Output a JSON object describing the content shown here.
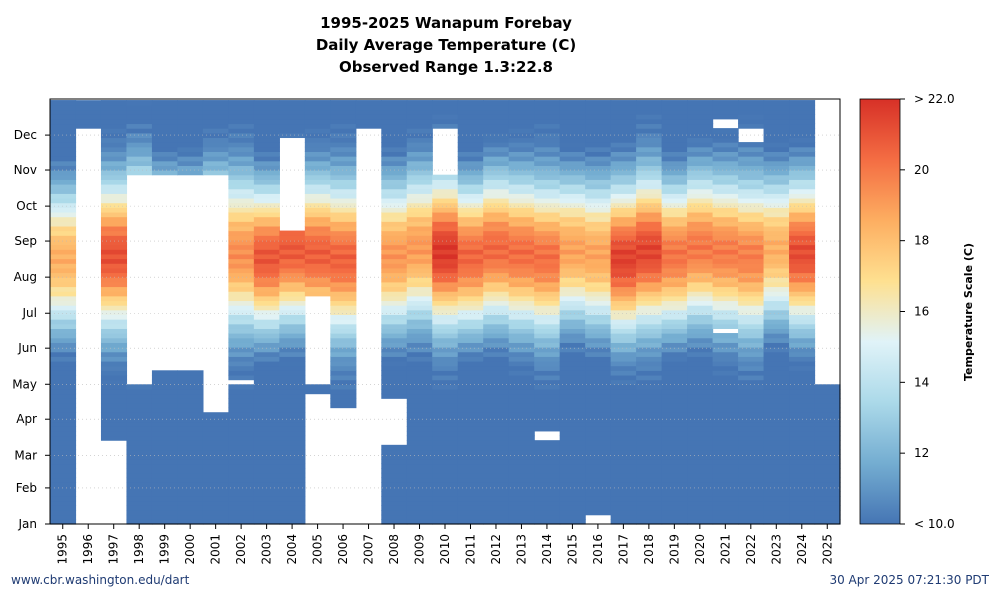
{
  "title": {
    "line1": "1995-2025 Wanapum Forebay",
    "line2": "Daily Average Temperature (C)",
    "line3": "Observed Range 1.3:22.8"
  },
  "footer": {
    "left": "www.cbr.washington.edu/dart",
    "right": "30 Apr 2025 07:21:30 PDT"
  },
  "chart_data": {
    "type": "heatmap",
    "x_label": "",
    "y_label": "",
    "years": [
      "1995",
      "1996",
      "1997",
      "1998",
      "1999",
      "2000",
      "2001",
      "2002",
      "2003",
      "2004",
      "2005",
      "2006",
      "2007",
      "2008",
      "2009",
      "2010",
      "2011",
      "2012",
      "2013",
      "2014",
      "2015",
      "2016",
      "2017",
      "2018",
      "2019",
      "2020",
      "2021",
      "2022",
      "2023",
      "2024",
      "2025"
    ],
    "month_ticks": [
      "Jan",
      "Feb",
      "Mar",
      "Apr",
      "May",
      "Jun",
      "Jul",
      "Aug",
      "Sep",
      "Oct",
      "Nov",
      "Dec"
    ],
    "y_range_days": [
      1,
      365
    ],
    "grid": "dotted horizontal at month starts",
    "colorbar": {
      "label": "Temperature Scale (C)",
      "min": 10.0,
      "max": 22.0,
      "ticks": [
        "< 10.0",
        "12",
        "14",
        "16",
        "18",
        "20",
        "> 22.0"
      ],
      "colors": [
        "#4575b4",
        "#74add1",
        "#abd9e9",
        "#e0f3f8",
        "#fee090",
        "#fdae61",
        "#f46d43",
        "#d73027"
      ]
    },
    "observed_range": [
      1.3,
      22.8
    ],
    "data_coverage_days": [
      [
        1,
        365
      ],
      [
        1,
        365
      ],
      [
        1,
        365
      ],
      [
        1,
        365
      ],
      [
        1,
        365
      ],
      [
        1,
        365
      ],
      [
        1,
        365
      ],
      [
        1,
        365
      ],
      [
        1,
        365
      ],
      [
        1,
        365
      ],
      [
        1,
        365
      ],
      [
        1,
        365
      ],
      [
        1,
        365
      ],
      [
        1,
        365
      ],
      [
        1,
        365
      ],
      [
        1,
        365
      ],
      [
        1,
        365
      ],
      [
        1,
        365
      ],
      [
        1,
        365
      ],
      [
        1,
        365
      ],
      [
        1,
        365
      ],
      [
        1,
        365
      ],
      [
        1,
        365
      ],
      [
        1,
        365
      ],
      [
        1,
        365
      ],
      [
        1,
        365
      ],
      [
        1,
        365
      ],
      [
        1,
        365
      ],
      [
        1,
        365
      ],
      [
        1,
        365
      ],
      [
        1,
        120
      ]
    ],
    "missing_ranges_days": [
      [],
      [
        [
          1,
          340
        ],
        [
          365,
          365
        ]
      ],
      [
        [
          1,
          70
        ]
      ],
      [
        [
          120,
          300
        ]
      ],
      [
        [
          130,
          300
        ]
      ],
      [
        [
          130,
          300
        ]
      ],
      [
        [
          95,
          300
        ]
      ],
      [
        [
          118,
          122
        ]
      ],
      [
        [],
        []
      ],
      [
        [
          250,
          330
        ]
      ],
      [
        [
          1,
          110
        ],
        [
          120,
          195
        ]
      ],
      [
        [
          1,
          10
        ],
        [
          10,
          100
        ]
      ],
      [
        [
          1,
          340
        ]
      ],
      [
        [
          68,
          105
        ]
      ],
      [],
      [
        [
          300,
          340
        ]
      ],
      [],
      [],
      [],
      [
        [
          70,
          78
        ]
      ],
      [],
      [
        [
          1,
          5
        ]
      ],
      [],
      [],
      [],
      [],
      [
        [
          340,
          348
        ],
        [
          162,
          168
        ]
      ],
      [
        [
          328,
          340
        ]
      ],
      [],
      [],
      [
        [
          120,
          365
        ]
      ]
    ]
  }
}
